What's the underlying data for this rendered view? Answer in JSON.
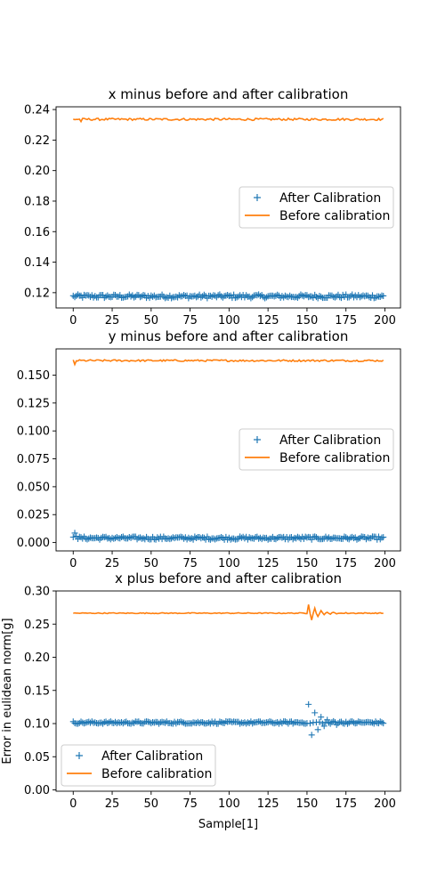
{
  "chart_data": [
    {
      "type": "line",
      "title": "x minus before and after calibration",
      "xlabel": "",
      "ylabel": "",
      "xlim": [
        -11,
        210
      ],
      "ylim": [
        0.11,
        0.2418
      ],
      "xticks": [
        0,
        25,
        50,
        75,
        100,
        125,
        150,
        175,
        200
      ],
      "yticks": [
        0.12,
        0.14,
        0.16,
        0.18,
        0.2,
        0.22,
        0.24
      ],
      "ytick_labels": [
        "0.12",
        "0.14",
        "0.16",
        "0.18",
        "0.20",
        "0.22",
        "0.24"
      ],
      "legend": "center-right",
      "series": [
        {
          "name": "After Calibration",
          "style": "markers-plus",
          "color": "#1f77b4",
          "n": 200,
          "base": 0.1176,
          "noise": 0.0012,
          "spikes": []
        },
        {
          "name": "Before calibration",
          "style": "line",
          "color": "#ff7f0e",
          "n": 200,
          "base": 0.2336,
          "noise": 0.0007,
          "spikes": [
            [
              5,
              -0.0015
            ]
          ]
        }
      ]
    },
    {
      "type": "line",
      "title": "y minus before and after calibration",
      "xlabel": "",
      "ylabel": "",
      "xlim": [
        -11,
        210
      ],
      "ylim": [
        -0.0075,
        0.1735
      ],
      "xticks": [
        0,
        25,
        50,
        75,
        100,
        125,
        150,
        175,
        200
      ],
      "yticks": [
        0.0,
        0.025,
        0.05,
        0.075,
        0.1,
        0.125,
        0.15
      ],
      "ytick_labels": [
        "0.000",
        "0.025",
        "0.050",
        "0.075",
        "0.100",
        "0.125",
        "0.150"
      ],
      "legend": "center-right",
      "series": [
        {
          "name": "After Calibration",
          "style": "markers-plus",
          "color": "#1f77b4",
          "n": 200,
          "base": 0.004,
          "noise": 0.0014,
          "spikes": [
            [
              1,
              0.0045
            ],
            [
              2,
              0.0015
            ]
          ]
        },
        {
          "name": "Before calibration",
          "style": "line",
          "color": "#ff7f0e",
          "n": 200,
          "base": 0.163,
          "noise": 0.0008,
          "spikes": [
            [
              1,
              -0.0035
            ]
          ]
        }
      ]
    },
    {
      "type": "line",
      "title": "x plus before and after calibration",
      "xlabel": "Sample[1]",
      "ylabel": "Error in eulidean norm[g]",
      "xlim": [
        -11,
        210
      ],
      "ylim": [
        -0.002,
        0.3
      ],
      "xticks": [
        0,
        25,
        50,
        75,
        100,
        125,
        150,
        175,
        200
      ],
      "yticks": [
        0.0,
        0.05,
        0.1,
        0.15,
        0.2,
        0.25,
        0.3
      ],
      "ytick_labels": [
        "0.00",
        "0.05",
        "0.10",
        "0.15",
        "0.20",
        "0.25",
        "0.30"
      ],
      "legend": "lower-left",
      "series": [
        {
          "name": "After Calibration",
          "style": "markers-plus",
          "color": "#1f77b4",
          "n": 200,
          "base": 0.1015,
          "noise": 0.0018,
          "oscillation": {
            "start": 150,
            "amp": 0.03,
            "decay": 0.15,
            "period": 4
          },
          "spikes": []
        },
        {
          "name": "Before calibration",
          "style": "line",
          "color": "#ff7f0e",
          "n": 200,
          "base": 0.2665,
          "noise": 0.0007,
          "oscillation": {
            "start": 150,
            "amp": 0.016,
            "decay": 0.16,
            "period": 4
          },
          "spikes": []
        }
      ]
    }
  ]
}
